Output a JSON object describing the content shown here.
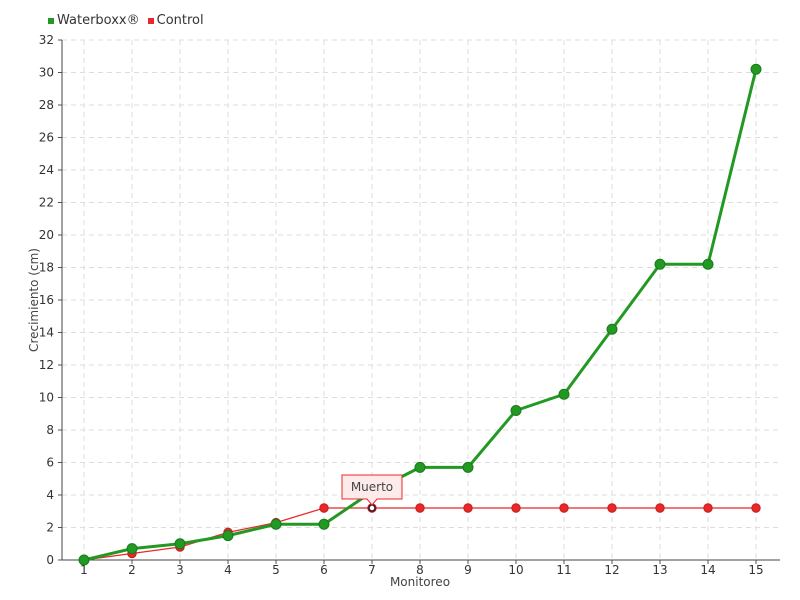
{
  "chart_data": {
    "type": "line",
    "x": [
      1,
      2,
      3,
      4,
      5,
      6,
      7,
      8,
      9,
      10,
      11,
      12,
      13,
      14,
      15
    ],
    "xlabel": "Monitoreo",
    "ylabel": "Crecimiento (cm)",
    "ylim": [
      0,
      32
    ],
    "ytick_step": 2,
    "grid": true,
    "legend_position": "top-left",
    "series": [
      {
        "name": "Waterboxx®",
        "color": "#229922",
        "values": [
          0,
          0.7,
          1.0,
          1.5,
          2.2,
          2.2,
          4.2,
          5.7,
          5.7,
          9.2,
          10.2,
          14.2,
          18.2,
          18.2,
          30.2
        ]
      },
      {
        "name": "Control",
        "color": "#e8282a",
        "values": [
          0,
          0.4,
          0.8,
          1.7,
          2.3,
          3.2,
          3.2,
          3.2,
          3.2,
          3.2,
          3.2,
          3.2,
          3.2,
          3.2,
          3.2
        ]
      }
    ],
    "annotations": [
      {
        "text": "Muerto",
        "x": 7,
        "y": 3.2,
        "series": "Control"
      }
    ]
  }
}
